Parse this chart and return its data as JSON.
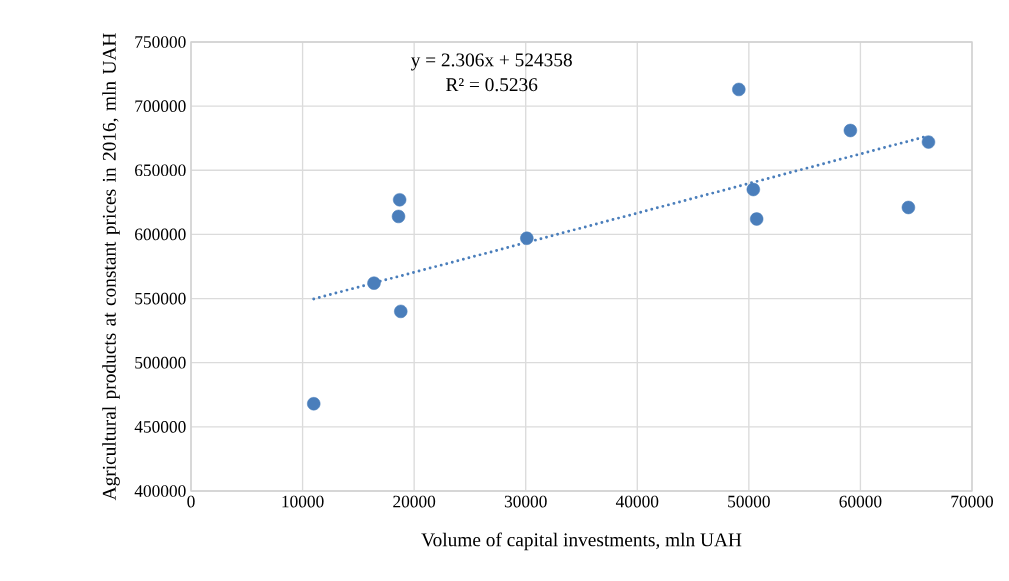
{
  "chart_data": {
    "type": "scatter",
    "xlabel": "Volume of capital investments, mln UAH",
    "ylabel": "Agricultural products at constant prices in 2016, mln UAH",
    "annotations": [
      "y = 2.306x + 524358",
      "R² = 0.5236"
    ],
    "xlim": [
      0,
      70000
    ],
    "xticks": [
      0,
      10000,
      20000,
      30000,
      40000,
      50000,
      60000,
      70000
    ],
    "ylim": [
      400000,
      750000
    ],
    "yticks": [
      400000,
      450000,
      500000,
      550000,
      600000,
      650000,
      700000,
      750000
    ],
    "grid": true,
    "series": [
      {
        "color": "#4a7ebb",
        "marker": "circle",
        "x": [
          11000,
          16400,
          18700,
          18600,
          18800,
          30100,
          49100,
          59100,
          66100,
          50400,
          50700,
          64300
        ],
        "values": [
          468000,
          562000,
          627000,
          614000,
          540000,
          597000,
          713000,
          681000,
          672000,
          635000,
          612000,
          621000
        ]
      },
      {
        "type": "line",
        "color": "#4a7ebb",
        "line_style": "dotted",
        "marker": "none",
        "x": [
          11000,
          66100
        ],
        "values": [
          549700,
          676800
        ]
      }
    ]
  }
}
